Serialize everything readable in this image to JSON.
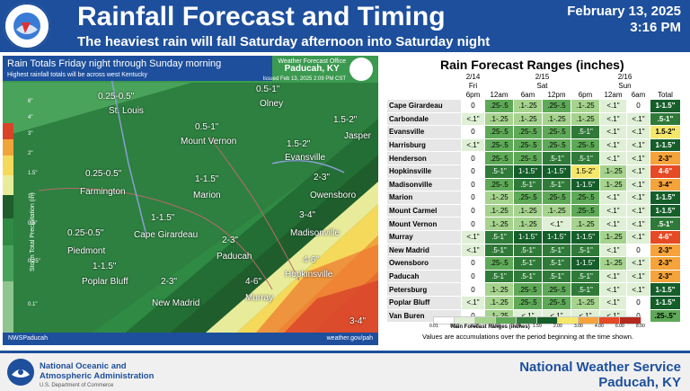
{
  "header": {
    "title": "Rainfall Forecast and Timing",
    "subtitle": "The heaviest rain will fall Saturday afternoon into Saturday night",
    "date": "February 13, 2025",
    "time": "3:16 PM",
    "logo_text": "NATIONAL WEATHER SERVICE"
  },
  "map": {
    "title": "Rain Totals Friday night through Sunday morning",
    "subtitle": "Highest rainfall totals will be across west Kentucky",
    "office_line1": "Weather Forecast Office",
    "office_line2": "Paducah, KY",
    "issued": "Issued Feb 13, 2025 2:09 PM CST",
    "legend_label": "Storm Total Precipitation (in)",
    "legend_ticks": [
      "6\"",
      "4\"",
      "3\"",
      "2\"",
      "1.5\"",
      "1\"",
      "0.5\"",
      "0.25\"",
      "0.1\""
    ],
    "footer_left": "NWSPaducah",
    "footer_right": "weather.gov/pah",
    "amounts": [
      "0.25-0.5\"",
      "0.5-1\"",
      "1.5-2\"",
      "0.5-1\"",
      "1.5-2\"",
      "0.25-0.5\"",
      "1-1.5\"",
      "2-3\"",
      "1-1.5\"",
      "3-4\"",
      "0.25-0.5\"",
      "2-3\"",
      "1-1.5\"",
      "2-3\"",
      "4-6\"",
      "4-6\"",
      "3-4\""
    ],
    "cities": [
      "St. Louis",
      "Olney",
      "Mount Vernon",
      "Jasper",
      "Evansville",
      "Farmington",
      "Marion",
      "Owensboro",
      "Cape Girardeau",
      "Madisonville",
      "Piedmont",
      "Paducah",
      "Poplar Bluff",
      "Hopkinsville",
      "New Madrid",
      "Murray"
    ]
  },
  "forecast": {
    "title": "Rain Forecast Ranges (inches)",
    "date_headers": [
      "2/14",
      "2/15",
      "2/16"
    ],
    "day_headers": [
      "Fri",
      "Sat",
      "Sun"
    ],
    "time_headers": [
      "6pm",
      "12am",
      "6am",
      "12pm",
      "6pm",
      "12am",
      "6am",
      "Total"
    ],
    "rows": [
      {
        "loc": "Cape Girardeau",
        "v": [
          "0",
          ".25-.5",
          ".1-.25",
          ".25-.5",
          ".1-.25",
          "<.1\"",
          "0",
          "1-1.5\""
        ]
      },
      {
        "loc": "Carbondale",
        "v": [
          "<.1\"",
          ".1-.25",
          ".1-.25",
          ".1-.25",
          ".1-.25",
          "<.1\"",
          "<.1\"",
          ".5-1\""
        ]
      },
      {
        "loc": "Evansville",
        "v": [
          "0",
          ".25-.5",
          ".25-.5",
          ".25-.5",
          ".5-1\"",
          "<.1\"",
          "<.1\"",
          "1.5-2\""
        ]
      },
      {
        "loc": "Harrisburg",
        "v": [
          "<.1\"",
          ".25-.5",
          ".25-.5",
          ".25-.5",
          ".25-.5",
          "<.1\"",
          "<.1\"",
          "1-1.5\""
        ]
      },
      {
        "loc": "Henderson",
        "v": [
          "0",
          ".25-.5",
          ".25-.5",
          ".5-1\"",
          ".5-1\"",
          "<.1\"",
          "<.1\"",
          "2-3\""
        ]
      },
      {
        "loc": "Hopkinsville",
        "v": [
          "0",
          ".5-1\"",
          "1-1.5\"",
          "1-1.5\"",
          "1.5-2\"",
          ".1-.25",
          "<.1\"",
          "4-6\""
        ]
      },
      {
        "loc": "Madisonville",
        "v": [
          "0",
          ".25-.5",
          ".5-1\"",
          ".5-1\"",
          "1-1.5\"",
          ".1-.25",
          "<.1\"",
          "3-4\""
        ]
      },
      {
        "loc": "Marion",
        "v": [
          "0",
          ".1-.25",
          ".25-.5",
          ".25-.5",
          ".25-.5",
          "<.1\"",
          "<.1\"",
          "1-1.5\""
        ]
      },
      {
        "loc": "Mount Carmel",
        "v": [
          "0",
          ".1-.25",
          ".1-.25",
          ".1-.25",
          ".25-.5",
          "<.1\"",
          "<.1\"",
          "1-1.5\""
        ]
      },
      {
        "loc": "Mount Vernon",
        "v": [
          "0",
          ".1-.25",
          ".1-.25",
          "<.1\"",
          ".1-.25",
          "<.1\"",
          "<.1\"",
          ".5-1\""
        ]
      },
      {
        "loc": "Murray",
        "v": [
          "<.1\"",
          ".5-1\"",
          "1-1.5\"",
          "1-1.5\"",
          "1-1.5\"",
          ".1-.25",
          "<.1\"",
          "4-6\""
        ]
      },
      {
        "loc": "New Madrid",
        "v": [
          "<.1\"",
          ".5-1\"",
          ".5-1\"",
          ".5-1\"",
          ".5-1\"",
          "<.1\"",
          "0",
          "2-3\""
        ]
      },
      {
        "loc": "Owensboro",
        "v": [
          "0",
          ".25-.5",
          ".5-1\"",
          ".5-1\"",
          "1-1.5\"",
          ".1-.25",
          "<.1\"",
          "2-3\""
        ]
      },
      {
        "loc": "Paducah",
        "v": [
          "0",
          ".5-1\"",
          ".5-1\"",
          ".5-1\"",
          ".5-1\"",
          "<.1\"",
          "<.1\"",
          "2-3\""
        ]
      },
      {
        "loc": "Petersburg",
        "v": [
          "0",
          ".1-.25",
          ".25-.5",
          ".25-.5",
          ".5-1\"",
          "<.1\"",
          "<.1\"",
          "1-1.5\""
        ]
      },
      {
        "loc": "Poplar Bluff",
        "v": [
          "<.1\"",
          ".1-.25",
          ".25-.5",
          ".25-.5",
          ".1-.25",
          "<.1\"",
          "0",
          "1-1.5\""
        ]
      },
      {
        "loc": "Van Buren",
        "v": [
          "0",
          ".1-.25",
          "<.1\"",
          "<.1\"",
          "<.1\"",
          "<.1\"",
          "0",
          ".25-.5\""
        ]
      }
    ],
    "scale_values": [
      "0.01",
      "0.10",
      "0.25",
      "0.50",
      "1.00",
      "1.50",
      "2.00",
      "3.00",
      "4.00",
      "6.00",
      "8.00"
    ],
    "scale_title": "Rain Forecast Ranges (inches)",
    "note": "Values are accumulations over the period beginning at the time shown."
  },
  "footer": {
    "noaa_line1": "National Oceanic and",
    "noaa_line2": "Atmospheric Administration",
    "noaa_dept": "U.S. Department of Commerce",
    "nws_line1": "National Weather Service",
    "nws_line2": "Paducah, KY"
  }
}
